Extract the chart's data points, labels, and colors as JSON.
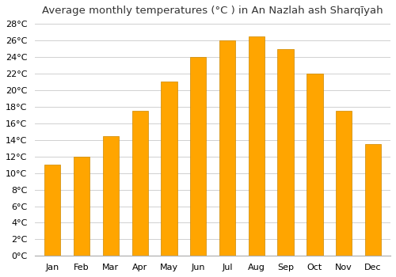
{
  "title": "Average monthly temperatures (°C ) in An Nazlah ash Sharqīyah",
  "months": [
    "Jan",
    "Feb",
    "Mar",
    "Apr",
    "May",
    "Jun",
    "Jul",
    "Aug",
    "Sep",
    "Oct",
    "Nov",
    "Dec"
  ],
  "temperatures": [
    11,
    12,
    14.5,
    17.5,
    21,
    24,
    26,
    26.5,
    25,
    22,
    17.5,
    13.5
  ],
  "bar_color_face": "#FFA500",
  "bar_color_edge": "#CC8800",
  "ylim": [
    0,
    28
  ],
  "ytick_step": 2,
  "background_color": "#ffffff",
  "grid_color": "#d0d0d0",
  "title_fontsize": 9.5,
  "tick_fontsize": 8,
  "bar_width": 0.55
}
